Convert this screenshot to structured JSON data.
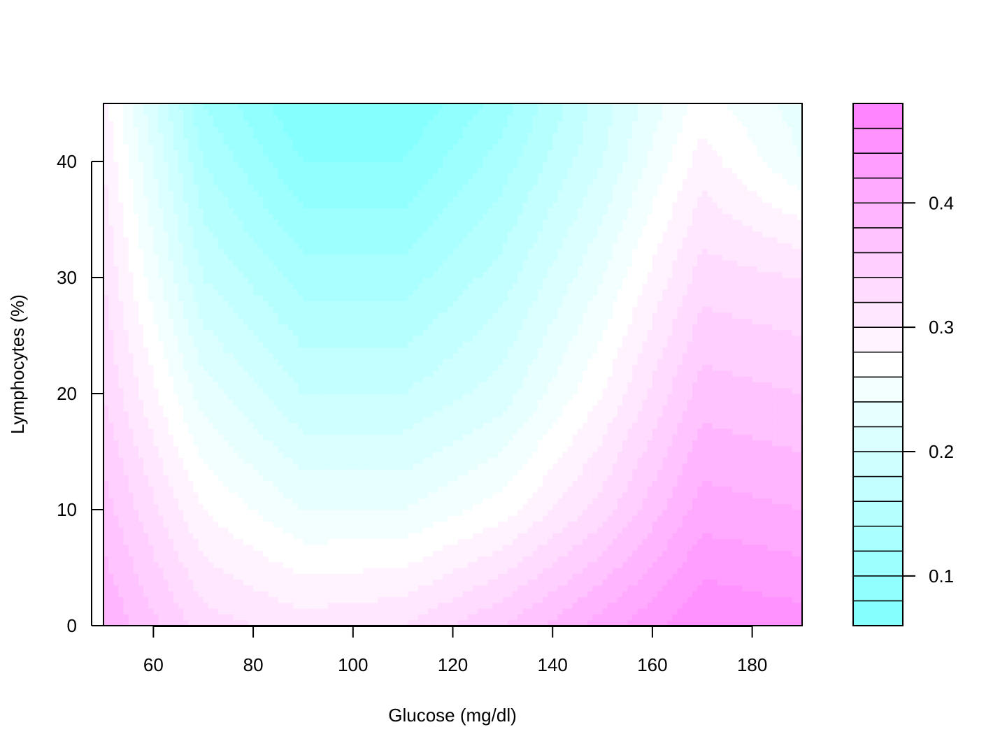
{
  "chart_data": {
    "type": "heatmap",
    "title": "",
    "xlabel": "Glucose (mg/dl)",
    "ylabel": "Lymphocytes (%)",
    "xlim": [
      50,
      190
    ],
    "ylim": [
      0,
      45
    ],
    "x_ticks": [
      60,
      80,
      100,
      120,
      140,
      160,
      180
    ],
    "y_ticks": [
      0,
      10,
      20,
      30,
      40
    ],
    "x_tick_labels": [
      "60",
      "80",
      "100",
      "120",
      "140",
      "160",
      "180"
    ],
    "y_tick_labels": [
      "0",
      "10",
      "20",
      "30",
      "40"
    ],
    "legend": {
      "position": "right",
      "type": "colorbar",
      "range": [
        0.06,
        0.48
      ],
      "levels": [
        0.06,
        0.08,
        0.1,
        0.12,
        0.14,
        0.16,
        0.18,
        0.2,
        0.22,
        0.24,
        0.26,
        0.28,
        0.3,
        0.32,
        0.34,
        0.36,
        0.38,
        0.4,
        0.42,
        0.44,
        0.46,
        0.48
      ],
      "ticks": [
        0.1,
        0.2,
        0.3,
        0.4
      ],
      "tick_labels": [
        "0.1",
        "0.2",
        "0.3",
        "0.4"
      ]
    },
    "colors": {
      "low": "#80ffff",
      "mid": "#ffffff",
      "high": "#ff80ff",
      "midpoint": 0.27
    },
    "grid": false,
    "surface_samples": {
      "x": [
        50,
        70,
        90,
        110,
        130,
        150,
        170,
        190
      ],
      "y": [
        0,
        10,
        20,
        30,
        40,
        45
      ],
      "z": [
        [
          0.4,
          0.33,
          0.31,
          0.32,
          0.36,
          0.41,
          0.46,
          0.45
        ],
        [
          0.37,
          0.28,
          0.24,
          0.24,
          0.27,
          0.33,
          0.41,
          0.4
        ],
        [
          0.34,
          0.23,
          0.18,
          0.18,
          0.21,
          0.28,
          0.37,
          0.36
        ],
        [
          0.32,
          0.18,
          0.13,
          0.13,
          0.17,
          0.24,
          0.33,
          0.32
        ],
        [
          0.3,
          0.14,
          0.08,
          0.08,
          0.13,
          0.2,
          0.29,
          0.24
        ],
        [
          0.29,
          0.12,
          0.06,
          0.06,
          0.11,
          0.19,
          0.27,
          0.23
        ]
      ]
    }
  }
}
